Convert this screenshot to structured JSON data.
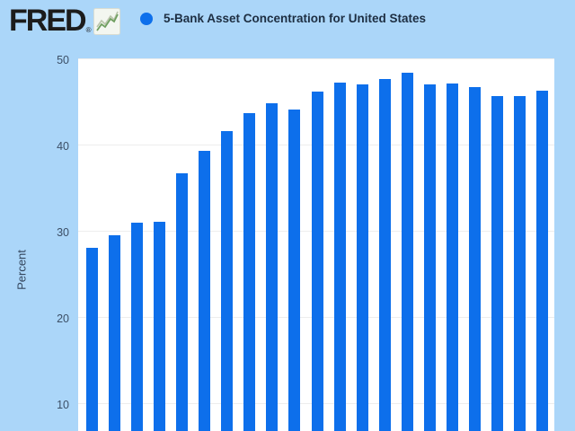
{
  "page": {
    "background_color": "#abd6f9"
  },
  "header": {
    "logo": {
      "text": "FRED",
      "registered_mark": "®",
      "icon": "fred-sparkline-icon"
    },
    "legend": {
      "marker_color": "#0d6feb",
      "series_label": "5-Bank Asset Concentration for United States"
    }
  },
  "y_axis": {
    "title": "Percent"
  },
  "chart_data": {
    "type": "bar",
    "title": "5-Bank Asset Concentration for United States",
    "ylabel": "Percent",
    "y_ticks": [
      50,
      40,
      30,
      20,
      10
    ],
    "ylim_visible": [
      6.8,
      50.2
    ],
    "grid": "horizontal",
    "legend_position": "top-left",
    "x_labels_visible": false,
    "x_note": "21 annual bars; x-axis labels cropped below visible area",
    "values": [
      28.0,
      29.5,
      30.9,
      31.0,
      36.7,
      39.3,
      41.6,
      43.6,
      44.8,
      44.1,
      46.1,
      47.2,
      47.0,
      47.6,
      48.3,
      47.0,
      47.1,
      46.7,
      45.6,
      45.6,
      46.2
    ],
    "bar_color": "#0d6feb",
    "plot_background": "#ffffff",
    "gridline_color": "#ededed",
    "tick_label_color": "#3c4f66"
  }
}
